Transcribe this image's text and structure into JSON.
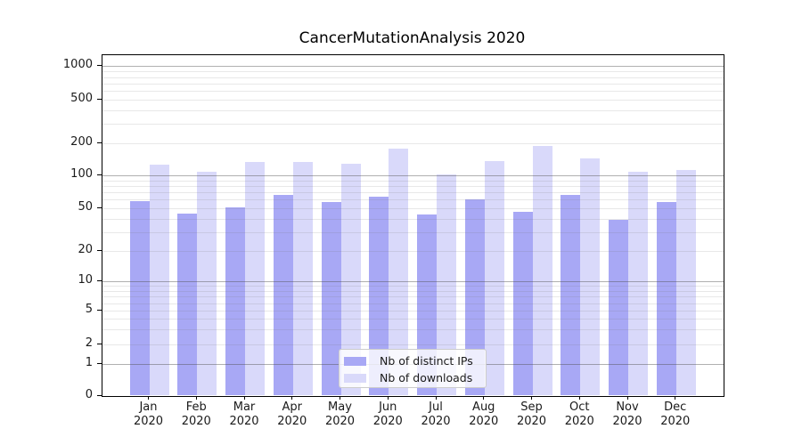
{
  "chart_data": {
    "type": "bar",
    "title": "CancerMutationAnalysis 2020",
    "categories": [
      "Jan",
      "Feb",
      "Mar",
      "Apr",
      "May",
      "Jun",
      "Jul",
      "Aug",
      "Sep",
      "Oct",
      "Nov",
      "Dec"
    ],
    "year_label": "2020",
    "series": [
      {
        "name": "Nb of distinct IPs",
        "color": "#a8a8f5",
        "values": [
          58,
          45,
          51,
          66,
          57,
          64,
          44,
          61,
          47,
          66,
          39,
          57
        ]
      },
      {
        "name": "Nb of downloads",
        "color": "#d9d9fa",
        "values": [
          125,
          107,
          133,
          134,
          129,
          179,
          101,
          136,
          188,
          143,
          107,
          112
        ]
      }
    ],
    "y_axis": {
      "scale": "symlog",
      "tick_labels": [
        0,
        1,
        2,
        5,
        10,
        20,
        50,
        100,
        200,
        500,
        1000
      ],
      "major_gridline_values": [
        1,
        10,
        100,
        1000
      ],
      "minor_gridline_values": [
        2,
        3,
        4,
        5,
        6,
        7,
        8,
        9,
        20,
        30,
        40,
        50,
        60,
        70,
        80,
        90,
        200,
        300,
        400,
        500,
        600,
        700,
        800,
        900
      ],
      "ylim": [
        0,
        1300
      ]
    },
    "legend": {
      "position": "lower center inside plot",
      "entries": [
        "Nb of distinct IPs",
        "Nb of downloads"
      ]
    },
    "grid": "horizontal, log minors"
  }
}
